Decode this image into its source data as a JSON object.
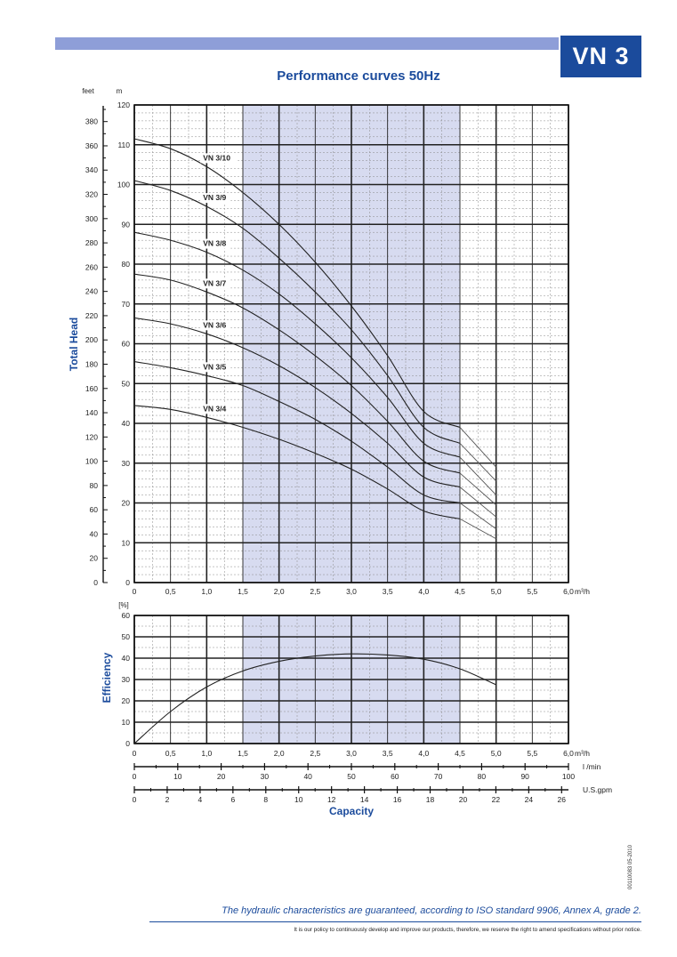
{
  "header": {
    "model": "VN 3",
    "title": "Performance curves 50Hz"
  },
  "footer": {
    "code": "00110083 05-2010",
    "guarantee": "The hydraulic characteristics are guaranteed, according to ISO standard 9906, Annex A, grade 2.",
    "policy": "It is our policy to continuously develop and improve our products, therefore, we reserve the right to amend specifications without prior notice."
  },
  "colors": {
    "brand": "#1b4b9c",
    "header_bar": "#8e9ed8",
    "operating_band": "#d7dbf0"
  },
  "chart_data": [
    {
      "type": "line",
      "ylabel": "Total Head",
      "y_unit_m": "m",
      "y_unit_ft": "feet",
      "x_unit": "m³/h",
      "xlim": [
        0,
        6
      ],
      "ylim": [
        0,
        120
      ],
      "x_ticks": [
        "0",
        "0,5",
        "1,0",
        "1,5",
        "2,0",
        "2,5",
        "3,0",
        "3,5",
        "4,0",
        "4,5",
        "5,0",
        "5,5",
        "6,0"
      ],
      "y_ticks_m": [
        0,
        10,
        20,
        30,
        40,
        50,
        60,
        70,
        80,
        90,
        100,
        110,
        120
      ],
      "y_ticks_ft": [
        0,
        20,
        40,
        60,
        80,
        100,
        120,
        140,
        160,
        180,
        200,
        220,
        240,
        260,
        280,
        300,
        320,
        340,
        360,
        380
      ],
      "operating_range": [
        1.5,
        4.5
      ],
      "grid": true,
      "series": [
        {
          "name": "VN 3/10",
          "x": [
            0,
            0.5,
            1.0,
            1.5,
            2.0,
            2.5,
            3.0,
            3.5,
            4.0,
            4.5,
            5.0
          ],
          "values": [
            111.5,
            109,
            104.5,
            98,
            90,
            80.5,
            69.5,
            57,
            43,
            39,
            29
          ]
        },
        {
          "name": "VN 3/9",
          "x": [
            0,
            0.5,
            1.0,
            1.5,
            2.0,
            2.5,
            3.0,
            3.5,
            4.0,
            4.5,
            5.0
          ],
          "values": [
            101,
            98.5,
            94.5,
            89,
            81.5,
            73,
            63.5,
            52,
            39,
            35,
            25.5
          ]
        },
        {
          "name": "VN 3/8",
          "x": [
            0,
            0.5,
            1.0,
            1.5,
            2.0,
            2.5,
            3.0,
            3.5,
            4.0,
            4.5,
            5.0
          ],
          "values": [
            88,
            86,
            83,
            78.5,
            72.5,
            65,
            56.5,
            46.5,
            35,
            31.5,
            22
          ]
        },
        {
          "name": "VN 3/7",
          "x": [
            0,
            0.5,
            1.0,
            1.5,
            2.0,
            2.5,
            3.0,
            3.5,
            4.0,
            4.5,
            5.0
          ],
          "values": [
            77.5,
            76,
            73,
            69,
            63.5,
            57,
            49.5,
            40.5,
            30.5,
            27.5,
            19.5
          ]
        },
        {
          "name": "VN 3/6",
          "x": [
            0,
            0.5,
            1.0,
            1.5,
            2.0,
            2.5,
            3.0,
            3.5,
            4.0,
            4.5,
            5.0
          ],
          "values": [
            66.5,
            65,
            62.5,
            59,
            54.5,
            49,
            42.5,
            35,
            26.5,
            24,
            16.5
          ]
        },
        {
          "name": "VN 3/5",
          "x": [
            0,
            0.5,
            1.0,
            1.5,
            2.0,
            2.5,
            3.0,
            3.5,
            4.0,
            4.5,
            5.0
          ],
          "values": [
            55.5,
            54,
            52,
            49.5,
            45.5,
            41,
            35.5,
            29,
            22,
            20,
            13.5
          ]
        },
        {
          "name": "VN 3/4",
          "x": [
            0,
            0.5,
            1.0,
            1.5,
            2.0,
            2.5,
            3.0,
            3.5,
            4.0,
            4.5,
            5.0
          ],
          "values": [
            44.5,
            43.5,
            41.5,
            39,
            36,
            32.5,
            28.5,
            23.5,
            18,
            16,
            11
          ]
        }
      ]
    },
    {
      "type": "line",
      "ylabel": "Efficiency",
      "y_unit": "[%]",
      "xlim": [
        0,
        6
      ],
      "ylim": [
        0,
        60
      ],
      "x_ticks": [
        "0",
        "0,5",
        "1,0",
        "1,5",
        "2,0",
        "2,5",
        "3,0",
        "3,5",
        "4,0",
        "4,5",
        "5,0",
        "5,5",
        "6,0"
      ],
      "y_ticks": [
        0,
        10,
        20,
        30,
        40,
        50,
        60
      ],
      "operating_range": [
        1.5,
        4.5
      ],
      "grid": true,
      "series": [
        {
          "x": [
            0,
            0.5,
            1.0,
            1.5,
            2.0,
            2.5,
            3.0,
            3.5,
            4.0,
            4.5,
            5.0
          ],
          "values": [
            0,
            15,
            26.5,
            34,
            38.5,
            41,
            42,
            41.5,
            39.5,
            35,
            27.5
          ]
        }
      ]
    },
    {
      "type": "axis",
      "xlabel": "Capacity",
      "axes": [
        {
          "unit": "l /min",
          "ticks": [
            "0",
            "10",
            "20",
            "30",
            "40",
            "50",
            "60",
            "70",
            "80",
            "90",
            "100"
          ],
          "max": 100
        },
        {
          "unit": "U.S.gpm",
          "ticks": [
            "0",
            "2",
            "4",
            "6",
            "8",
            "10",
            "12",
            "14",
            "16",
            "18",
            "20",
            "22",
            "24",
            "26"
          ],
          "max": 26.417
        }
      ]
    }
  ]
}
